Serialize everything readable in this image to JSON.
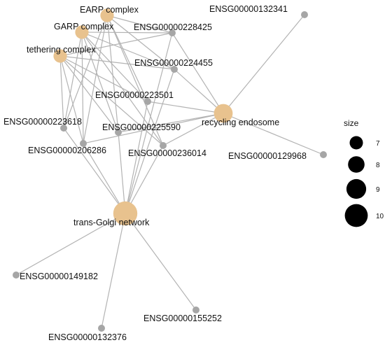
{
  "network": {
    "nodes": [
      {
        "id": "earp",
        "label": "EARP complex",
        "kind": "term",
        "size": 8
      },
      {
        "id": "garp",
        "label": "GARP complex",
        "kind": "term",
        "size": 8
      },
      {
        "id": "tether",
        "label": "tethering complex",
        "kind": "term",
        "size": 8
      },
      {
        "id": "recycling",
        "label": "recycling endosome",
        "kind": "term",
        "size": 9
      },
      {
        "id": "tgn",
        "label": "trans-Golgi network",
        "kind": "term",
        "size": 10
      },
      {
        "id": "g132341",
        "label": "ENSG00000132341",
        "kind": "gene"
      },
      {
        "id": "g228425",
        "label": "ENSG00000228425",
        "kind": "gene"
      },
      {
        "id": "g224455",
        "label": "ENSG00000224455",
        "kind": "gene"
      },
      {
        "id": "g223501",
        "label": "ENSG00000223501",
        "kind": "gene"
      },
      {
        "id": "g223618",
        "label": "ENSG00000223618",
        "kind": "gene"
      },
      {
        "id": "g225590",
        "label": "ENSG00000225590",
        "kind": "gene"
      },
      {
        "id": "g206286",
        "label": "ENSG00000206286",
        "kind": "gene"
      },
      {
        "id": "g236014",
        "label": "ENSG00000236014",
        "kind": "gene"
      },
      {
        "id": "g129968",
        "label": "ENSG00000129968",
        "kind": "gene"
      },
      {
        "id": "g149182",
        "label": "ENSG00000149182",
        "kind": "gene"
      },
      {
        "id": "g155252",
        "label": "ENSG00000155252",
        "kind": "gene"
      },
      {
        "id": "g132376",
        "label": "ENSG00000132376",
        "kind": "gene"
      }
    ],
    "edges": [
      [
        "earp",
        "g228425"
      ],
      [
        "earp",
        "g224455"
      ],
      [
        "earp",
        "g223501"
      ],
      [
        "earp",
        "g223618"
      ],
      [
        "earp",
        "g225590"
      ],
      [
        "earp",
        "g206286"
      ],
      [
        "earp",
        "g236014"
      ],
      [
        "garp",
        "g228425"
      ],
      [
        "garp",
        "g224455"
      ],
      [
        "garp",
        "g223501"
      ],
      [
        "garp",
        "g223618"
      ],
      [
        "garp",
        "g225590"
      ],
      [
        "garp",
        "g206286"
      ],
      [
        "garp",
        "g236014"
      ],
      [
        "tether",
        "g228425"
      ],
      [
        "tether",
        "g224455"
      ],
      [
        "tether",
        "g223501"
      ],
      [
        "tether",
        "g223618"
      ],
      [
        "tether",
        "g225590"
      ],
      [
        "tether",
        "g206286"
      ],
      [
        "tether",
        "g236014"
      ],
      [
        "recycling",
        "g132341"
      ],
      [
        "recycling",
        "g228425"
      ],
      [
        "recycling",
        "g224455"
      ],
      [
        "recycling",
        "g223501"
      ],
      [
        "recycling",
        "g225590"
      ],
      [
        "recycling",
        "g206286"
      ],
      [
        "recycling",
        "g236014"
      ],
      [
        "recycling",
        "g129968"
      ],
      [
        "tgn",
        "g228425"
      ],
      [
        "tgn",
        "g224455"
      ],
      [
        "tgn",
        "g223501"
      ],
      [
        "tgn",
        "g223618"
      ],
      [
        "tgn",
        "g225590"
      ],
      [
        "tgn",
        "g206286"
      ],
      [
        "tgn",
        "g236014"
      ],
      [
        "tgn",
        "g149182"
      ],
      [
        "tgn",
        "g155252"
      ],
      [
        "tgn",
        "g132376"
      ]
    ],
    "colors": {
      "term": "#e8c28e",
      "gene": "#a6a6a6",
      "edge": "#b3b3b3"
    }
  },
  "legend": {
    "title": "size",
    "entries": [
      {
        "label": "7",
        "value": 7
      },
      {
        "label": "8",
        "value": 8
      },
      {
        "label": "9",
        "value": 9
      },
      {
        "label": "10",
        "value": 10
      }
    ]
  }
}
